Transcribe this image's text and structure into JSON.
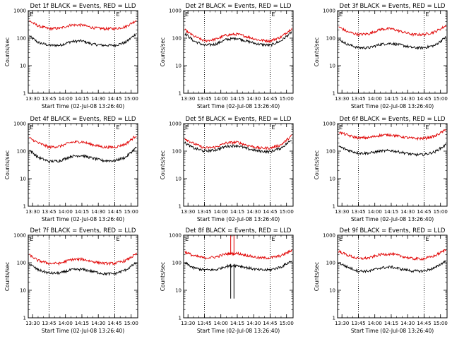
{
  "chart_data": [
    {
      "type": "line",
      "title": "Det 1f BLACK = Events, RED = LLD",
      "xlabel": "Start Time (02-Jul-08 13:26:40)",
      "ylabel": "Counts/sec",
      "y_scale": "log",
      "ylim": [
        1,
        1000
      ],
      "xlim": [
        "13:26",
        "15:06"
      ],
      "x_ticks": [
        "13:30",
        "13:45",
        "14:00",
        "14:15",
        "14:30",
        "14:45",
        "15:00"
      ],
      "y_ticks": [
        "1",
        "10",
        "100",
        "1000"
      ],
      "markers": [
        {
          "x": "13:45",
          "label": ""
        },
        {
          "x": "14:45",
          "label": "E"
        }
      ],
      "x": [
        "13:27",
        "13:35",
        "13:45",
        "13:55",
        "14:05",
        "14:15",
        "14:25",
        "14:35",
        "14:45",
        "14:55",
        "15:05"
      ],
      "series": [
        {
          "color": "#000000",
          "values": [
            120,
            70,
            55,
            55,
            75,
            80,
            60,
            55,
            55,
            70,
            150
          ]
        },
        {
          "color": "#e00000",
          "values": [
            420,
            280,
            220,
            230,
            300,
            300,
            240,
            220,
            220,
            260,
            450
          ]
        }
      ]
    },
    {
      "type": "line",
      "title": "Det 2f BLACK = Events, RED = LLD",
      "xlabel": "Start Time (02-Jul-08 13:26:40)",
      "ylabel": "Counts/sec",
      "y_scale": "log",
      "ylim": [
        1,
        1000
      ],
      "xlim": [
        "13:26",
        "15:06"
      ],
      "x_ticks": [
        "13:30",
        "13:45",
        "14:00",
        "14:15",
        "14:30",
        "14:45",
        "15:00"
      ],
      "y_ticks": [
        "1",
        "10",
        "100",
        "1000"
      ],
      "markers": [
        {
          "x": "13:45",
          "label": ""
        },
        {
          "x": "14:45",
          "label": "E"
        }
      ],
      "x": [
        "13:27",
        "13:35",
        "13:45",
        "13:55",
        "14:05",
        "14:15",
        "14:25",
        "14:35",
        "14:45",
        "14:55",
        "15:05"
      ],
      "series": [
        {
          "color": "#000000",
          "values": [
            150,
            80,
            55,
            60,
            90,
            100,
            75,
            60,
            55,
            80,
            170
          ]
        },
        {
          "color": "#e00000",
          "values": [
            200,
            120,
            80,
            90,
            130,
            140,
            110,
            85,
            80,
            110,
            230
          ]
        }
      ]
    },
    {
      "type": "line",
      "title": "Det 3f BLACK = Events, RED = LLD",
      "xlabel": "Start Time (02-Jul-08 13:26:40)",
      "ylabel": "Counts/sec",
      "y_scale": "log",
      "ylim": [
        1,
        1000
      ],
      "xlim": [
        "13:26",
        "15:06"
      ],
      "x_ticks": [
        "13:30",
        "13:45",
        "14:00",
        "14:15",
        "14:30",
        "14:45",
        "15:00"
      ],
      "y_ticks": [
        "1",
        "10",
        "100",
        "1000"
      ],
      "markers": [
        {
          "x": "13:45",
          "label": ""
        },
        {
          "x": "14:45",
          "label": "E"
        }
      ],
      "x": [
        "13:27",
        "13:35",
        "13:45",
        "13:55",
        "14:05",
        "14:15",
        "14:25",
        "14:35",
        "14:45",
        "14:55",
        "15:05"
      ],
      "series": [
        {
          "color": "#000000",
          "values": [
            90,
            60,
            45,
            45,
            60,
            65,
            55,
            45,
            45,
            55,
            110
          ]
        },
        {
          "color": "#e00000",
          "values": [
            260,
            170,
            135,
            145,
            210,
            220,
            170,
            135,
            135,
            170,
            280
          ]
        }
      ]
    },
    {
      "type": "line",
      "title": "Det 4f BLACK = Events, RED = LLD",
      "xlabel": "Start Time (02-Jul-08 13:26:40)",
      "ylabel": "Counts/sec",
      "y_scale": "log",
      "ylim": [
        1,
        1000
      ],
      "xlim": [
        "13:26",
        "15:06"
      ],
      "x_ticks": [
        "13:30",
        "13:45",
        "14:00",
        "14:15",
        "14:30",
        "14:45",
        "15:00"
      ],
      "y_ticks": [
        "1",
        "10",
        "100",
        "1000"
      ],
      "markers": [
        {
          "x": "13:45",
          "label": ""
        },
        {
          "x": "14:45",
          "label": "E"
        }
      ],
      "x": [
        "13:27",
        "13:35",
        "13:45",
        "13:55",
        "14:05",
        "14:15",
        "14:25",
        "14:35",
        "14:45",
        "14:55",
        "15:05"
      ],
      "series": [
        {
          "color": "#000000",
          "values": [
            110,
            60,
            42,
            45,
            65,
            70,
            55,
            45,
            45,
            60,
            140
          ]
        },
        {
          "color": "#e00000",
          "values": [
            300,
            200,
            140,
            150,
            210,
            220,
            170,
            140,
            140,
            180,
            380
          ]
        }
      ]
    },
    {
      "type": "line",
      "title": "Det 5f BLACK = Events, RED = LLD",
      "xlabel": "Start Time (02-Jul-08 13:26:40)",
      "ylabel": "Counts/sec",
      "y_scale": "log",
      "ylim": [
        1,
        1000
      ],
      "xlim": [
        "13:26",
        "15:06"
      ],
      "x_ticks": [
        "13:30",
        "13:45",
        "14:00",
        "14:15",
        "14:30",
        "14:45",
        "15:00"
      ],
      "y_ticks": [
        "1",
        "10",
        "100",
        "1000"
      ],
      "markers": [
        {
          "x": "13:45",
          "label": ""
        },
        {
          "x": "14:45",
          "label": "E"
        }
      ],
      "x": [
        "13:27",
        "13:35",
        "13:45",
        "13:55",
        "14:05",
        "14:15",
        "14:25",
        "14:35",
        "14:45",
        "14:55",
        "15:05"
      ],
      "series": [
        {
          "color": "#000000",
          "values": [
            200,
            130,
            100,
            110,
            150,
            160,
            120,
            100,
            95,
            130,
            260
          ]
        },
        {
          "color": "#e00000",
          "values": [
            290,
            190,
            130,
            140,
            200,
            210,
            160,
            130,
            130,
            170,
            370
          ]
        }
      ]
    },
    {
      "type": "line",
      "title": "Det 6f BLACK = Events, RED = LLD",
      "xlabel": "Start Time (02-Jul-08 13:26:40)",
      "ylabel": "Counts/sec",
      "y_scale": "log",
      "ylim": [
        1,
        1000
      ],
      "xlim": [
        "13:26",
        "15:06"
      ],
      "x_ticks": [
        "13:30",
        "13:45",
        "14:00",
        "14:15",
        "14:30",
        "14:45",
        "15:00"
      ],
      "y_ticks": [
        "1",
        "10",
        "100",
        "1000"
      ],
      "markers": [
        {
          "x": "13:45",
          "label": ""
        },
        {
          "x": "14:45",
          "label": "E"
        }
      ],
      "x": [
        "13:27",
        "13:35",
        "13:45",
        "13:55",
        "14:05",
        "14:15",
        "14:25",
        "14:35",
        "14:45",
        "14:55",
        "15:05"
      ],
      "series": [
        {
          "color": "#000000",
          "values": [
            150,
            110,
            85,
            85,
            100,
            105,
            90,
            75,
            75,
            95,
            170
          ]
        },
        {
          "color": "#e00000",
          "values": [
            500,
            380,
            300,
            310,
            380,
            390,
            330,
            290,
            290,
            350,
            600
          ]
        }
      ]
    },
    {
      "type": "line",
      "title": "Det 7f BLACK = Events, RED = LLD",
      "xlabel": "Start Time (02-Jul-08 13:26:40)",
      "ylabel": "Counts/sec",
      "y_scale": "log",
      "ylim": [
        1,
        1000
      ],
      "xlim": [
        "13:26",
        "15:06"
      ],
      "x_ticks": [
        "13:30",
        "13:45",
        "14:00",
        "14:15",
        "14:30",
        "14:45",
        "15:00"
      ],
      "y_ticks": [
        "1",
        "10",
        "100",
        "1000"
      ],
      "markers": [
        {
          "x": "13:45",
          "label": ""
        },
        {
          "x": "14:45",
          "label": "E"
        }
      ],
      "x": [
        "13:27",
        "13:35",
        "13:45",
        "13:55",
        "14:05",
        "14:15",
        "14:25",
        "14:35",
        "14:45",
        "14:55",
        "15:05"
      ],
      "series": [
        {
          "color": "#000000",
          "values": [
            90,
            55,
            42,
            42,
            55,
            58,
            48,
            40,
            40,
            55,
            100
          ]
        },
        {
          "color": "#e00000",
          "values": [
            190,
            120,
            95,
            95,
            130,
            135,
            110,
            95,
            95,
            120,
            210
          ]
        }
      ]
    },
    {
      "type": "line",
      "title": "Det 8f BLACK = Events, RED = LLD",
      "xlabel": "Start Time (02-Jul-08 13:26:40)",
      "ylabel": "Counts/sec",
      "y_scale": "log",
      "ylim": [
        1,
        1000
      ],
      "xlim": [
        "13:26",
        "15:06"
      ],
      "x_ticks": [
        "13:30",
        "13:45",
        "14:00",
        "14:15",
        "14:30",
        "14:45",
        "15:00"
      ],
      "y_ticks": [
        "1",
        "10",
        "100",
        "1000"
      ],
      "markers": [
        {
          "x": "13:45",
          "label": ""
        },
        {
          "x": "14:45",
          "label": "E"
        }
      ],
      "x": [
        "13:27",
        "13:35",
        "13:45",
        "13:55",
        "14:05",
        "14:15",
        "14:25",
        "14:35",
        "14:45",
        "14:55",
        "15:05"
      ],
      "series": [
        {
          "color": "#000000",
          "values": [
            100,
            65,
            55,
            55,
            75,
            80,
            65,
            55,
            55,
            70,
            120
          ]
        },
        {
          "color": "#e00000",
          "values": [
            250,
            180,
            150,
            160,
            210,
            220,
            180,
            150,
            150,
            180,
            280
          ]
        }
      ],
      "spikes": [
        {
          "x": "14:09",
          "color": "#000000",
          "low": 5,
          "high": 90
        },
        {
          "x": "14:09",
          "color": "#e00000",
          "low": 200,
          "high": 1000
        },
        {
          "x": "14:12",
          "color": "#000000",
          "low": 5,
          "high": 90
        },
        {
          "x": "14:12",
          "color": "#e00000",
          "low": 200,
          "high": 1000
        }
      ]
    },
    {
      "type": "line",
      "title": "Det 9f BLACK = Events, RED = LLD",
      "xlabel": "Start Time (02-Jul-08 13:26:40)",
      "ylabel": "Counts/sec",
      "y_scale": "log",
      "ylim": [
        1,
        1000
      ],
      "xlim": [
        "13:26",
        "15:06"
      ],
      "x_ticks": [
        "13:30",
        "13:45",
        "14:00",
        "14:15",
        "14:30",
        "14:45",
        "15:00"
      ],
      "y_ticks": [
        "1",
        "10",
        "100",
        "1000"
      ],
      "markers": [
        {
          "x": "13:45",
          "label": ""
        },
        {
          "x": "14:45",
          "label": "E"
        }
      ],
      "x": [
        "13:27",
        "13:35",
        "13:45",
        "13:55",
        "14:05",
        "14:15",
        "14:25",
        "14:35",
        "14:45",
        "14:55",
        "15:05"
      ],
      "series": [
        {
          "color": "#000000",
          "values": [
            100,
            70,
            50,
            50,
            65,
            70,
            58,
            50,
            50,
            65,
            120
          ]
        },
        {
          "color": "#e00000",
          "values": [
            260,
            190,
            140,
            150,
            200,
            210,
            170,
            140,
            140,
            180,
            300
          ]
        }
      ]
    }
  ]
}
